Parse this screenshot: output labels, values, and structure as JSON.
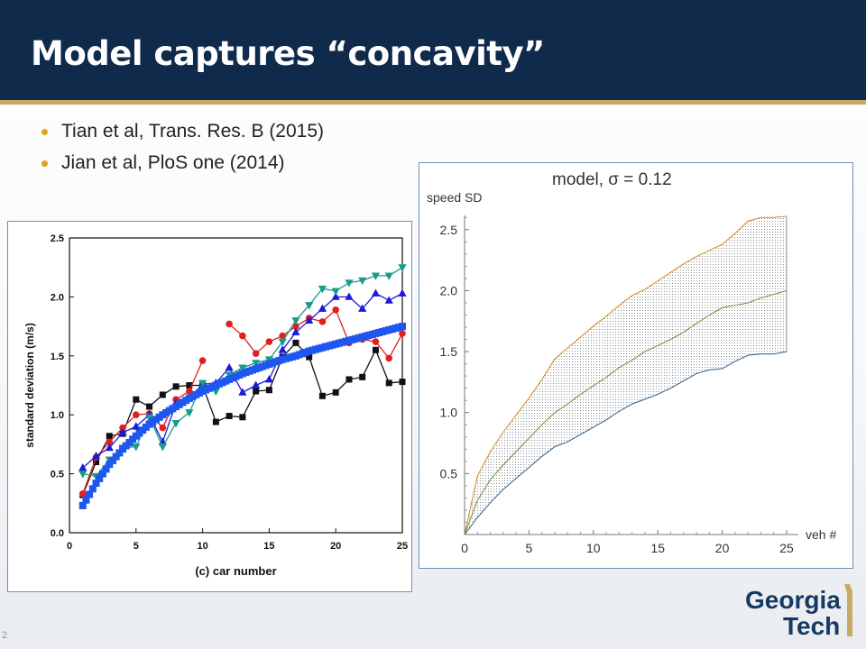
{
  "slide": {
    "title": "Model captures “concavity”",
    "bullets": [
      "Tian et al, Trans. Res. B (2015)",
      "Jian et al, PloS one (2014)"
    ],
    "page_number": "2",
    "logo_text": [
      "Georgia",
      "Tech"
    ],
    "colors": {
      "header": "#102a4c",
      "accent": "#c8ab62",
      "bullet": "#e0a21c",
      "panel_border": "#6e8fb6"
    }
  },
  "chart_data": [
    {
      "type": "line",
      "xlabel": "(c)  car number",
      "ylabel": "standard deviation (m/s)",
      "xlim": [
        0,
        25
      ],
      "ylim": [
        0,
        2.5
      ],
      "x_ticks": [
        "0",
        "5",
        "10",
        "15",
        "20",
        "25"
      ],
      "y_ticks": [
        "0.0",
        "0.5",
        "1.0",
        "1.5",
        "2.0",
        "2.5"
      ],
      "series": [
        {
          "color": "#111111",
          "marker": "square",
          "x": [
            1,
            2,
            3,
            4,
            5,
            6,
            7,
            8,
            9,
            10,
            11,
            12,
            13,
            14,
            15,
            16,
            17,
            18,
            19,
            20,
            21,
            22,
            23,
            24,
            25
          ],
          "y": [
            0.32,
            0.6,
            0.82,
            0.84,
            1.13,
            1.07,
            1.17,
            1.24,
            1.25,
            1.25,
            0.94,
            0.99,
            0.98,
            1.2,
            1.21,
            1.49,
            1.61,
            1.49,
            1.16,
            1.19,
            1.3,
            1.32,
            1.55,
            1.27,
            1.28
          ]
        },
        {
          "color": "#e02020",
          "marker": "circle",
          "x": [
            1,
            2,
            3,
            4,
            5,
            6,
            7,
            8,
            9,
            10,
            11,
            12,
            13,
            14,
            15,
            16,
            17,
            18,
            19,
            20,
            21,
            22,
            23,
            24,
            25
          ],
          "y": [
            0.33,
            0.64,
            0.77,
            0.89,
            1.0,
            1.01,
            0.89,
            1.13,
            1.2,
            1.46,
            null,
            1.77,
            1.67,
            1.52,
            1.62,
            1.67,
            1.75,
            1.82,
            1.79,
            1.89,
            1.61,
            1.64,
            1.62,
            1.48,
            1.69
          ]
        },
        {
          "color": "#1a1ad8",
          "marker": "triangle-up",
          "x": [
            1,
            2,
            3,
            4,
            5,
            6,
            7,
            8,
            9,
            10,
            11,
            12,
            13,
            14,
            15,
            16,
            17,
            18,
            19,
            20,
            21,
            22,
            23,
            24,
            25
          ],
          "y": [
            0.55,
            0.65,
            0.72,
            0.85,
            0.9,
            1.0,
            0.77,
            1.1,
            1.14,
            1.26,
            1.27,
            1.4,
            1.19,
            1.25,
            1.3,
            1.55,
            1.7,
            1.8,
            1.9,
            2.0,
            2.0,
            1.9,
            2.03,
            1.97,
            2.03
          ]
        },
        {
          "color": "#1a9a8a",
          "marker": "triangle-down",
          "x": [
            1,
            2,
            3,
            4,
            5,
            6,
            7,
            8,
            9,
            10,
            11,
            12,
            13,
            14,
            15,
            16,
            17,
            18,
            19,
            20,
            21,
            22,
            23,
            24,
            25
          ],
          "y": [
            0.5,
            0.48,
            0.62,
            0.72,
            0.73,
            0.98,
            0.73,
            0.93,
            1.02,
            1.27,
            1.2,
            1.34,
            1.4,
            1.44,
            1.47,
            1.62,
            1.8,
            1.93,
            2.07,
            2.05,
            2.12,
            2.14,
            2.18,
            2.18,
            2.25
          ]
        },
        {
          "color": "#1e56f0",
          "marker": "square-dense",
          "x": [
            1,
            2,
            3,
            4,
            5,
            6,
            7,
            8,
            9,
            10,
            11,
            12,
            13,
            14,
            15,
            16,
            17,
            18,
            19,
            20,
            21,
            22,
            23,
            24,
            25
          ],
          "y": [
            0.23,
            0.42,
            0.58,
            0.71,
            0.82,
            0.92,
            1.0,
            1.07,
            1.14,
            1.2,
            1.25,
            1.3,
            1.35,
            1.39,
            1.43,
            1.47,
            1.5,
            1.54,
            1.57,
            1.6,
            1.63,
            1.66,
            1.69,
            1.72,
            1.75
          ]
        }
      ]
    },
    {
      "type": "area",
      "title": "model, σ = 0.12",
      "ylabel": "speed SD",
      "xlabel": "veh #",
      "xlim": [
        0,
        25
      ],
      "ylim": [
        0,
        2.75
      ],
      "x_ticks": [
        "0",
        "5",
        "10",
        "15",
        "20",
        "25"
      ],
      "y_ticks": [
        "0.5",
        "1.0",
        "1.5",
        "2.0",
        "2.5"
      ],
      "x": [
        0,
        1,
        2,
        3,
        4,
        5,
        6,
        7,
        8,
        9,
        10,
        11,
        12,
        13,
        14,
        15,
        16,
        17,
        18,
        19,
        20,
        21,
        22,
        23,
        24,
        25
      ],
      "upper": [
        0.0,
        0.48,
        0.68,
        0.84,
        0.98,
        1.12,
        1.27,
        1.44,
        1.53,
        1.62,
        1.71,
        1.79,
        1.88,
        1.96,
        2.01,
        2.08,
        2.15,
        2.22,
        2.28,
        2.33,
        2.38,
        2.47,
        2.57,
        2.6,
        2.6,
        2.61
      ],
      "mean": [
        0.0,
        0.28,
        0.45,
        0.57,
        0.68,
        0.79,
        0.9,
        1.0,
        1.07,
        1.15,
        1.22,
        1.29,
        1.37,
        1.43,
        1.5,
        1.55,
        1.6,
        1.66,
        1.73,
        1.8,
        1.86,
        1.88,
        1.9,
        1.94,
        1.97,
        2.0
      ],
      "lower": [
        0.0,
        0.14,
        0.26,
        0.37,
        0.46,
        0.55,
        0.64,
        0.72,
        0.76,
        0.82,
        0.88,
        0.94,
        1.01,
        1.07,
        1.11,
        1.15,
        1.2,
        1.26,
        1.32,
        1.35,
        1.36,
        1.42,
        1.47,
        1.48,
        1.48,
        1.5
      ],
      "colors": {
        "upper": "#d08a1a",
        "mean": "#6b8f3a",
        "lower": "#2c5f88"
      }
    }
  ]
}
